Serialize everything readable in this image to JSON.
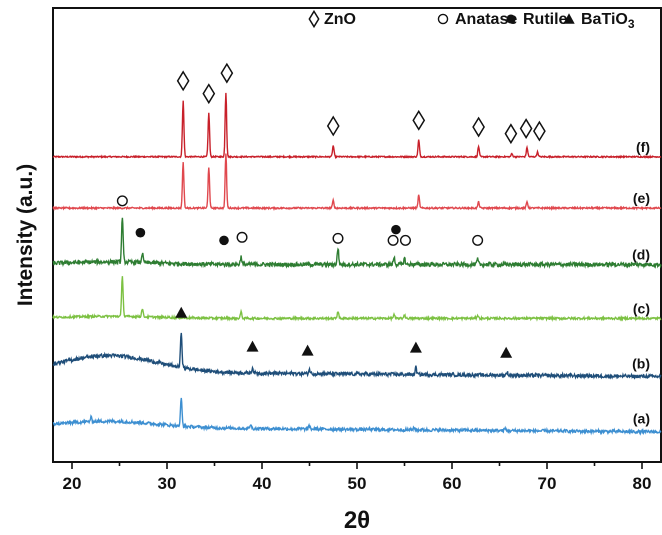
{
  "chart_data": {
    "type": "line",
    "title": "",
    "xlabel": "2θ",
    "ylabel": "Intensity (a.u.)",
    "xlim": [
      18,
      82
    ],
    "xticks": [
      20,
      30,
      40,
      50,
      60,
      70,
      80
    ],
    "y_ticks_shown": false,
    "grid": false,
    "legend": {
      "placement": "top-right",
      "entries": [
        {
          "symbol": "diamond",
          "label": "ZnO"
        },
        {
          "symbol": "open-circle",
          "label": "Anatase"
        },
        {
          "symbol": "filled-circle",
          "label": "Rutile"
        },
        {
          "symbol": "triangle",
          "label": "BaTiO",
          "subscript": "3"
        }
      ]
    },
    "series": [
      {
        "name": "(f)",
        "color": "#c8202a",
        "baseline": 5.0,
        "noise": 0.012,
        "hump": 0.0,
        "peaks": [
          [
            31.7,
            1.1
          ],
          [
            34.4,
            0.85
          ],
          [
            36.2,
            1.25
          ],
          [
            47.5,
            0.22
          ],
          [
            56.5,
            0.33
          ],
          [
            62.8,
            0.2
          ],
          [
            66.3,
            0.06
          ],
          [
            67.9,
            0.18
          ],
          [
            69.0,
            0.09
          ]
        ]
      },
      {
        "name": "(e)",
        "color": "#e0484e",
        "baseline": 4.0,
        "noise": 0.015,
        "hump": 0.0,
        "peaks": [
          [
            31.7,
            0.9
          ],
          [
            34.4,
            0.8
          ],
          [
            36.2,
            1.05
          ],
          [
            47.5,
            0.15
          ],
          [
            56.5,
            0.25
          ],
          [
            62.8,
            0.12
          ],
          [
            67.9,
            0.12
          ]
        ]
      },
      {
        "name": "(d)",
        "color": "#2e7d32",
        "baseline": 2.9,
        "noise": 0.04,
        "hump": 0.05,
        "peaks": [
          [
            25.3,
            0.9
          ],
          [
            27.4,
            0.18
          ],
          [
            37.8,
            0.15
          ],
          [
            48.0,
            0.32
          ],
          [
            53.9,
            0.14
          ],
          [
            55.0,
            0.12
          ],
          [
            62.7,
            0.1
          ]
        ]
      },
      {
        "name": "(c)",
        "color": "#7cc142",
        "baseline": 1.85,
        "noise": 0.02,
        "hump": 0.04,
        "peaks": [
          [
            25.3,
            0.8
          ],
          [
            27.4,
            0.16
          ],
          [
            37.8,
            0.12
          ],
          [
            48.0,
            0.14
          ],
          [
            53.9,
            0.07
          ],
          [
            55.0,
            0.07
          ],
          [
            62.7,
            0.06
          ]
        ]
      },
      {
        "name": "(b)",
        "color": "#1f4e79",
        "baseline": 0.78,
        "noise": 0.035,
        "hump": 0.32,
        "peaks": [
          [
            31.5,
            0.7
          ],
          [
            39.0,
            0.1
          ],
          [
            45.0,
            0.08
          ],
          [
            56.2,
            0.14
          ],
          [
            65.8,
            0.06
          ]
        ]
      },
      {
        "name": "(a)",
        "color": "#3d8fd1",
        "baseline": -0.3,
        "noise": 0.03,
        "hump": 0.12,
        "peaks": [
          [
            22.0,
            0.08
          ],
          [
            31.5,
            0.55
          ],
          [
            38.8,
            0.08
          ],
          [
            45.0,
            0.06
          ],
          [
            56.0,
            0.05
          ],
          [
            65.6,
            0.04
          ]
        ]
      }
    ],
    "annotations": [
      {
        "symbol": "diamond",
        "points": [
          [
            31.7,
            6.48
          ],
          [
            34.4,
            6.23
          ],
          [
            36.3,
            6.63
          ],
          [
            47.5,
            5.6
          ],
          [
            56.5,
            5.71
          ],
          [
            62.8,
            5.58
          ],
          [
            66.2,
            5.45
          ],
          [
            67.8,
            5.55
          ],
          [
            69.2,
            5.5
          ]
        ]
      },
      {
        "symbol": "open-circle",
        "points": [
          [
            25.3,
            4.14
          ],
          [
            37.9,
            3.43
          ],
          [
            48.0,
            3.41
          ],
          [
            53.8,
            3.37
          ],
          [
            55.1,
            3.37
          ],
          [
            62.7,
            3.37
          ]
        ]
      },
      {
        "symbol": "filled-circle",
        "points": [
          [
            27.2,
            3.52
          ],
          [
            36.0,
            3.37
          ],
          [
            54.1,
            3.58
          ]
        ]
      },
      {
        "symbol": "triangle",
        "points": [
          [
            31.5,
            1.96
          ],
          [
            39.0,
            1.3
          ],
          [
            44.8,
            1.22
          ],
          [
            56.2,
            1.28
          ],
          [
            65.7,
            1.18
          ]
        ]
      }
    ]
  }
}
